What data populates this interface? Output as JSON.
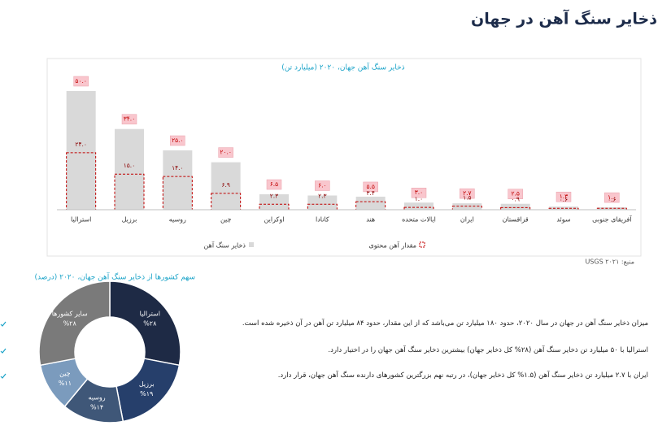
{
  "header": {
    "title": "ذخایر سنگ آهن در جهان"
  },
  "chart_data": [
    {
      "type": "bar",
      "title": "ذخایر سنگ آهن جهان، ۲۰۲۰ (میلیارد تن)",
      "categories": [
        "استرالیا",
        "برزیل",
        "روسیه",
        "چین",
        "اوکراین",
        "کانادا",
        "هند",
        "ایالات متحده",
        "ایران",
        "قزاقستان",
        "سوئد",
        "آفریقای جنوبی"
      ],
      "series": [
        {
          "name": "ذخایر سنگ آهن",
          "color": "#d9d9d9",
          "values": [
            50,
            34,
            25,
            20,
            6.5,
            6.0,
            5.5,
            3.0,
            2.7,
            2.5,
            1.3,
            1.0
          ],
          "value_labels": [
            "۵۰.۰",
            "۳۴.۰",
            "۲۵.۰",
            "۲۰.۰",
            "۶.۵",
            "۶.۰",
            "۵.۵",
            "۳.۰",
            "۲.۷",
            "۲.۵",
            "۱.۳",
            "۱.۰"
          ]
        },
        {
          "name": "مقدار آهن محتوی",
          "color": "#c00000",
          "values": [
            24,
            15,
            14,
            6.9,
            2.3,
            2.3,
            3.4,
            1.0,
            1.5,
            0.9,
            0.6,
            0.6
          ],
          "value_labels": [
            "۲۴.۰",
            "۱۵.۰",
            "۱۴.۰",
            "۶.۹",
            "۲.۳",
            "۲.۳",
            "۳.۴",
            "۱.۰",
            "۱.۵",
            "۰.۹",
            "۰.۶",
            "۰.۶"
          ]
        }
      ],
      "source": "منبع: USGS ۲۰۲۱"
    },
    {
      "type": "donut",
      "title": "سهم کشورها از ذخایر سنگ آهن جهان، ۲۰۲۰ (درصد)",
      "categories": [
        "استرالیا",
        "برزیل",
        "روسیه",
        "چین",
        "سایر کشورها"
      ],
      "values": [
        28,
        19,
        14,
        11,
        28
      ],
      "value_labels": [
        "%۲۸",
        "%۱۹",
        "%۱۴",
        "%۱۱",
        "%۲۸"
      ],
      "colors": [
        "#1e2a45",
        "#263f6b",
        "#3f5778",
        "#7b9bbd",
        "#7a7a7a"
      ]
    }
  ],
  "notes": [
    "میزان ذخایر سنگ آهن در جهان در سال ۲۰۲۰، حدود ۱۸۰ میلیارد تن می‌باشد که از این مقدار، حدود ۸۴ میلیارد تن آهن در آن ذخیره شده است.",
    "استرالیا با ۵۰ میلیارد تن ذخایر سنگ آهن (۲۸% کل ذخایر جهان) بیشترین ذخایر سنگ آهن جهان را در اختیار دارد.",
    "ایران با ۲.۷ میلیارد تن ذخایر سنگ آهن (۱.۵% کل ذخایر جهان)، در رتبه نهم بزرگترین کشورهای دارنده سنگ آهن جهان، قرار دارد."
  ]
}
